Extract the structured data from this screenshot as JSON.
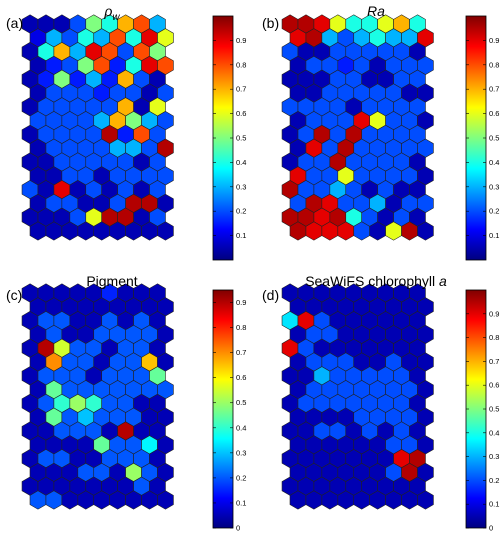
{
  "chart_data": [
    {
      "type": "heatmap",
      "panel_label": "(a)",
      "title_main": "ρ",
      "title_sub": "w",
      "title_italic": true,
      "grid": "hexagonal",
      "colorbar": {
        "ticks": [
          0.1,
          0.2,
          0.3,
          0.4,
          0.5,
          0.6,
          0.7,
          0.8,
          0.9
        ],
        "range": [
          0,
          1
        ]
      },
      "cells": [
        [
          0.05,
          0.05,
          0.05,
          0.2,
          0.5,
          0.4,
          0.7,
          0.8,
          0.3
        ],
        [
          0.1,
          0.3,
          0.2,
          0.4,
          0.3,
          0.8,
          0.4,
          0.9,
          0.6
        ],
        [
          0.05,
          0.4,
          0.7,
          0.3,
          0.9,
          0.8,
          0.2,
          0.8,
          0.5
        ],
        [
          0.05,
          0.15,
          0.2,
          0.5,
          0.8,
          0.15,
          0.4,
          0.9,
          0.8
        ],
        [
          0.05,
          0.15,
          0.5,
          0.15,
          0.3,
          0.15,
          0.7,
          0.2,
          0.05
        ],
        [
          0.05,
          0.2,
          0.2,
          0.2,
          0.15,
          0.2,
          0.2,
          0.05,
          0.2
        ],
        [
          0.05,
          0.2,
          0.2,
          0.2,
          0.2,
          0.2,
          0.7,
          0.05,
          0.6
        ],
        [
          0.2,
          0.2,
          0.2,
          0.2,
          0.3,
          0.7,
          0.5,
          0.3,
          0.2
        ],
        [
          0.05,
          0.2,
          0.2,
          0.2,
          0.2,
          0.95,
          0.15,
          0.8,
          0.2
        ],
        [
          0.05,
          0.2,
          0.2,
          0.2,
          0.2,
          0.3,
          0.3,
          0.2,
          0.95
        ],
        [
          0.05,
          0.05,
          0.2,
          0.2,
          0.2,
          0.2,
          0.2,
          0.05,
          0.2
        ],
        [
          0.05,
          0.05,
          0.2,
          0.2,
          0.05,
          0.2,
          0.2,
          0.2,
          0.2
        ],
        [
          0.2,
          0.05,
          0.9,
          0.05,
          0.2,
          0.05,
          0.2,
          0.05,
          0.2
        ],
        [
          0.05,
          0.2,
          0.2,
          0.05,
          0.05,
          0.2,
          0.95,
          0.95,
          0.05
        ],
        [
          0.05,
          0.05,
          0.05,
          0.2,
          0.6,
          0.95,
          0.95,
          0.05,
          0.2
        ],
        [
          0.05,
          0.05,
          0.05,
          0.05,
          0.05,
          0.05,
          0.05,
          0.05,
          0.05
        ]
      ]
    },
    {
      "type": "heatmap",
      "panel_label": "(b)",
      "title_main": "Ra",
      "title_sub": "",
      "title_italic": true,
      "grid": "hexagonal",
      "colorbar": {
        "ticks": [
          0.1,
          0.2,
          0.3,
          0.4,
          0.5,
          0.6,
          0.7,
          0.8,
          0.9
        ],
        "range": [
          0,
          1
        ]
      },
      "cells": [
        [
          0.95,
          0.95,
          0.9,
          0.6,
          0.4,
          0.4,
          0.6,
          0.7,
          0.4
        ],
        [
          0.9,
          0.95,
          0.3,
          0.2,
          0.3,
          0.4,
          0.3,
          0.3,
          0.9
        ],
        [
          0.2,
          0.05,
          0.05,
          0.2,
          0.2,
          0.2,
          0.2,
          0.2,
          0.05
        ],
        [
          0.05,
          0.2,
          0.2,
          0.15,
          0.2,
          0.05,
          0.2,
          0.2,
          0.2
        ],
        [
          0.05,
          0.05,
          0.05,
          0.2,
          0.2,
          0.05,
          0.05,
          0.2,
          0.2
        ],
        [
          0.05,
          0.05,
          0.2,
          0.2,
          0.2,
          0.2,
          0.2,
          0.05,
          0.05
        ],
        [
          0.2,
          0.2,
          0.2,
          0.2,
          0.05,
          0.2,
          0.2,
          0.2,
          0.2
        ],
        [
          0.05,
          0.2,
          0.2,
          0.2,
          0.9,
          0.6,
          0.2,
          0.2,
          0.05
        ],
        [
          0.05,
          0.2,
          0.95,
          0.2,
          0.95,
          0.2,
          0.2,
          0.2,
          0.2
        ],
        [
          0.05,
          0.9,
          0.2,
          0.95,
          0.2,
          0.2,
          0.2,
          0.2,
          0.2
        ],
        [
          0.05,
          0.2,
          0.2,
          0.95,
          0.2,
          0.2,
          0.2,
          0.2,
          0.05
        ],
        [
          0.9,
          0.2,
          0.2,
          0.6,
          0.2,
          0.2,
          0.2,
          0.2,
          0.05
        ],
        [
          0.95,
          0.2,
          0.2,
          0.3,
          0.2,
          0.05,
          0.2,
          0.05,
          0.05
        ],
        [
          0.2,
          0.95,
          0.9,
          0.2,
          0.2,
          0.3,
          0.05,
          0.2,
          0.2
        ],
        [
          0.95,
          0.95,
          0.9,
          0.95,
          0.4,
          0.2,
          0.05,
          0.2,
          0.05
        ],
        [
          0.95,
          0.9,
          0.9,
          0.9,
          0.2,
          0.05,
          0.6,
          0.95,
          0.05
        ]
      ]
    },
    {
      "type": "heatmap",
      "panel_label": "(c)",
      "title_main": "Pigment",
      "title_sub": "",
      "title_italic": false,
      "grid": "hexagonal",
      "colorbar": {
        "ticks": [
          0,
          0.1,
          0.2,
          0.3,
          0.4,
          0.5,
          0.6,
          0.7,
          0.8,
          0.9
        ],
        "range": [
          0,
          0.95
        ]
      },
      "cells": [
        [
          0.05,
          0.05,
          0.05,
          0.05,
          0.05,
          0.15,
          0.05,
          0.05,
          0.05
        ],
        [
          0.05,
          0.05,
          0.05,
          0.05,
          0.05,
          0.05,
          0.05,
          0.05,
          0.05
        ],
        [
          0.05,
          0.2,
          0.2,
          0.05,
          0.05,
          0.2,
          0.05,
          0.2,
          0.05
        ],
        [
          0.05,
          0.2,
          0.05,
          0.05,
          0.2,
          0.2,
          0.2,
          0.2,
          0.05
        ],
        [
          0.05,
          0.9,
          0.55,
          0.2,
          0.2,
          0.05,
          0.2,
          0.2,
          0.05
        ],
        [
          0.05,
          0.7,
          0.2,
          0.2,
          0.05,
          0.2,
          0.2,
          0.65,
          0.05
        ],
        [
          0.05,
          0.2,
          0.2,
          0.2,
          0.05,
          0.2,
          0.2,
          0.2,
          0.45
        ],
        [
          0.05,
          0.45,
          0.2,
          0.2,
          0.2,
          0.2,
          0.2,
          0.2,
          0.2
        ],
        [
          0.05,
          0.2,
          0.4,
          0.5,
          0.4,
          0.2,
          0.2,
          0.05,
          0.05
        ],
        [
          0.05,
          0.45,
          0.2,
          0.3,
          0.2,
          0.2,
          0.2,
          0.05,
          0.05
        ],
        [
          0.05,
          0.05,
          0.2,
          0.2,
          0.2,
          0.05,
          0.9,
          0.05,
          0.05
        ],
        [
          0.05,
          0.05,
          0.05,
          0.05,
          0.45,
          0.2,
          0.2,
          0.35,
          0.05
        ],
        [
          0.05,
          0.2,
          0.2,
          0.05,
          0.05,
          0.2,
          0.2,
          0.2,
          0.05
        ],
        [
          0.05,
          0.05,
          0.05,
          0.2,
          0.2,
          0.05,
          0.5,
          0.2,
          0.05
        ],
        [
          0.05,
          0.05,
          0.05,
          0.05,
          0.05,
          0.05,
          0.05,
          0.2,
          0.05
        ],
        [
          0.2,
          0.2,
          0.05,
          0.05,
          0.05,
          0.05,
          0.05,
          0.05,
          0.05
        ]
      ]
    },
    {
      "type": "heatmap",
      "panel_label": "(d)",
      "title_main": "SeaWiFS chlorophyll ",
      "title_sub": "",
      "title_italic_suffix": "a",
      "title_italic": false,
      "grid": "hexagonal",
      "colorbar": {
        "ticks": [
          0,
          0.1,
          0.2,
          0.3,
          0.4,
          0.5,
          0.6,
          0.7,
          0.8,
          0.9
        ],
        "range": [
          0,
          1
        ]
      },
      "cells": [
        [
          0.05,
          0.05,
          0.05,
          0.05,
          0.05,
          0.05,
          0.05,
          0.05,
          0.05
        ],
        [
          0.05,
          0.05,
          0.05,
          0.05,
          0.05,
          0.05,
          0.05,
          0.05,
          0.05
        ],
        [
          0.35,
          0.9,
          0.2,
          0.05,
          0.05,
          0.05,
          0.05,
          0.05,
          0.05
        ],
        [
          0.05,
          0.2,
          0.2,
          0.05,
          0.05,
          0.05,
          0.05,
          0.05,
          0.05
        ],
        [
          0.9,
          0.2,
          0.05,
          0.05,
          0.05,
          0.05,
          0.05,
          0.05,
          0.05
        ],
        [
          0.05,
          0.2,
          0.2,
          0.2,
          0.05,
          0.05,
          0.2,
          0.05,
          0.05
        ],
        [
          0.05,
          0.05,
          0.3,
          0.2,
          0.2,
          0.2,
          0.2,
          0.2,
          0.05
        ],
        [
          0.05,
          0.2,
          0.2,
          0.2,
          0.2,
          0.2,
          0.2,
          0.2,
          0.05
        ],
        [
          0.05,
          0.2,
          0.2,
          0.2,
          0.2,
          0.2,
          0.2,
          0.2,
          0.05
        ],
        [
          0.05,
          0.05,
          0.05,
          0.05,
          0.2,
          0.2,
          0.2,
          0.2,
          0.05
        ],
        [
          0.05,
          0.05,
          0.2,
          0.2,
          0.05,
          0.2,
          0.05,
          0.2,
          0.05
        ],
        [
          0.05,
          0.05,
          0.05,
          0.05,
          0.05,
          0.05,
          0.2,
          0.2,
          0.05
        ],
        [
          0.05,
          0.05,
          0.05,
          0.05,
          0.05,
          0.05,
          0.05,
          0.9,
          0.95
        ],
        [
          0.05,
          0.05,
          0.05,
          0.05,
          0.05,
          0.05,
          0.2,
          0.95,
          0.05
        ],
        [
          0.05,
          0.05,
          0.05,
          0.05,
          0.05,
          0.05,
          0.05,
          0.05,
          0.05
        ],
        [
          0.05,
          0.05,
          0.05,
          0.05,
          0.05,
          0.05,
          0.05,
          0.05,
          0.05
        ]
      ]
    }
  ]
}
